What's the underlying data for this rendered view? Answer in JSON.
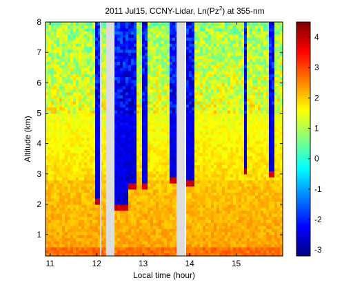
{
  "chart_data": {
    "type": "heatmap",
    "title_main": "2011 Jul15, CCNY-Lidar, Ln(Pz",
    "title_sup": "2",
    "title_tail": ") at 355-nm",
    "xlabel": "Local time (hour)",
    "ylabel": "Altitude (km)",
    "xlim": [
      10.9,
      16.0
    ],
    "ylim": [
      0.3,
      8.0
    ],
    "xticks": [
      "11",
      "12",
      "13",
      "14",
      "15"
    ],
    "yticks": [
      "1",
      "2",
      "3",
      "4",
      "5",
      "6",
      "7",
      "8"
    ],
    "colorbar": {
      "range": [
        -3.2,
        4.5
      ],
      "ticks": [
        "-3",
        "-2",
        "-1",
        "0",
        "1",
        "2",
        "3",
        "4"
      ],
      "colormap": "jet"
    },
    "gaps": [
      [
        12.07,
        12.1
      ],
      [
        12.2,
        12.37
      ],
      [
        13.72,
        13.9
      ]
    ],
    "cloud_columns": [
      {
        "t0": 11.95,
        "t1": 12.07,
        "base_km": 2.1
      },
      {
        "t0": 12.37,
        "t1": 12.7,
        "base_km": 1.9
      },
      {
        "t0": 12.7,
        "t1": 12.85,
        "base_km": 2.6
      },
      {
        "t0": 13.0,
        "t1": 13.1,
        "base_km": 2.6
      },
      {
        "t0": 13.55,
        "t1": 13.6,
        "base_km": 2.8
      },
      {
        "t0": 13.65,
        "t1": 13.72,
        "base_km": 2.8
      },
      {
        "t0": 13.9,
        "t1": 14.1,
        "base_km": 2.7
      },
      {
        "t0": 15.18,
        "t1": 15.23,
        "base_km": 3.1
      },
      {
        "t0": 15.7,
        "t1": 15.8,
        "base_km": 3.0
      }
    ],
    "boundary_layer_top_km": 2.8,
    "grid": false
  }
}
